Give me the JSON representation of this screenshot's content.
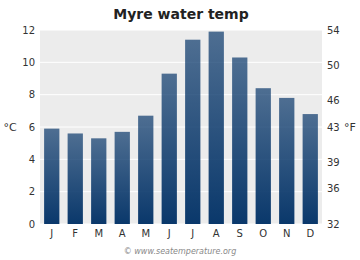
{
  "chart_data": {
    "type": "bar",
    "title": "Myre water temp",
    "categories": [
      "J",
      "F",
      "M",
      "A",
      "M",
      "J",
      "J",
      "A",
      "S",
      "O",
      "N",
      "D"
    ],
    "values": [
      5.9,
      5.6,
      5.3,
      5.7,
      6.7,
      9.3,
      11.4,
      11.9,
      10.3,
      8.4,
      7.8,
      6.8
    ],
    "color": "#0a386b",
    "ylim": [
      0,
      12
    ],
    "yticks": [
      0,
      2,
      4,
      6,
      8,
      10,
      12
    ],
    "y2lim": [
      32,
      54
    ],
    "y2ticks": [
      32,
      36,
      39,
      43,
      46,
      50,
      54
    ],
    "ylabel": "°C",
    "y2label": "°F",
    "annotations": [
      "© www.seatemperature.org"
    ],
    "grid": true
  }
}
